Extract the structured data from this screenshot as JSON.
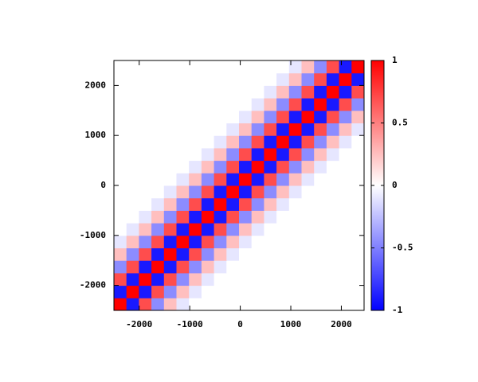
{
  "chart_data": {
    "type": "heatmap",
    "xlim": [
      -2500,
      2450
    ],
    "ylim": [
      -2500,
      2500
    ],
    "xticks": [
      -2000,
      -1000,
      0,
      1000,
      2000
    ],
    "yticks": [
      -2000,
      -1000,
      0,
      1000,
      2000
    ],
    "cblim": [
      -1,
      1
    ],
    "cbticks": [
      -1,
      -0.5,
      0,
      0.5,
      1
    ],
    "colormap": [
      "#0000ff",
      "#ffffff",
      "#ff0000"
    ],
    "z": [
      [
        1,
        -0.9,
        0.7,
        -0.45,
        0.25,
        -0.1,
        0,
        0,
        0,
        0,
        0,
        0,
        0,
        0,
        0,
        0,
        0,
        0,
        0,
        0
      ],
      [
        -0.9,
        1,
        -0.9,
        0.7,
        -0.45,
        0.25,
        -0.1,
        0,
        0,
        0,
        0,
        0,
        0,
        0,
        0,
        0,
        0,
        0,
        0,
        0
      ],
      [
        0.7,
        -0.9,
        1,
        -0.9,
        0.7,
        -0.45,
        0.25,
        -0.1,
        0,
        0,
        0,
        0,
        0,
        0,
        0,
        0,
        0,
        0,
        0,
        0
      ],
      [
        -0.45,
        0.7,
        -0.9,
        1,
        -0.9,
        0.7,
        -0.45,
        0.25,
        -0.1,
        0,
        0,
        0,
        0,
        0,
        0,
        0,
        0,
        0,
        0,
        0
      ],
      [
        0.25,
        -0.45,
        0.7,
        -0.9,
        1,
        -0.9,
        0.7,
        -0.45,
        0.25,
        -0.1,
        0,
        0,
        0,
        0,
        0,
        0,
        0,
        0,
        0,
        0
      ],
      [
        -0.1,
        0.25,
        -0.45,
        0.7,
        -0.9,
        1,
        -0.9,
        0.7,
        -0.45,
        0.25,
        -0.1,
        0,
        0,
        0,
        0,
        0,
        0,
        0,
        0,
        0
      ],
      [
        0,
        -0.1,
        0.25,
        -0.45,
        0.7,
        -0.9,
        1,
        -0.9,
        0.7,
        -0.45,
        0.25,
        -0.1,
        0,
        0,
        0,
        0,
        0,
        0,
        0,
        0
      ],
      [
        0,
        0,
        -0.1,
        0.25,
        -0.45,
        0.7,
        -0.9,
        1,
        -0.9,
        0.7,
        -0.45,
        0.25,
        -0.1,
        0,
        0,
        0,
        0,
        0,
        0,
        0
      ],
      [
        0,
        0,
        0,
        -0.1,
        0.25,
        -0.45,
        0.7,
        -0.9,
        1,
        -0.9,
        0.7,
        -0.45,
        0.25,
        -0.1,
        0,
        0,
        0,
        0,
        0,
        0
      ],
      [
        0,
        0,
        0,
        0,
        -0.1,
        0.25,
        -0.45,
        0.7,
        -0.9,
        1,
        -0.9,
        0.7,
        -0.45,
        0.25,
        -0.1,
        0,
        0,
        0,
        0,
        0
      ],
      [
        0,
        0,
        0,
        0,
        0,
        -0.1,
        0.25,
        -0.45,
        0.7,
        -0.9,
        1,
        -0.9,
        0.7,
        -0.45,
        0.25,
        -0.1,
        0,
        0,
        0,
        0
      ],
      [
        0,
        0,
        0,
        0,
        0,
        0,
        -0.1,
        0.25,
        -0.45,
        0.7,
        -0.9,
        1,
        -0.9,
        0.7,
        -0.45,
        0.25,
        -0.1,
        0,
        0,
        0
      ],
      [
        0,
        0,
        0,
        0,
        0,
        0,
        0,
        -0.1,
        0.25,
        -0.45,
        0.7,
        -0.9,
        1,
        -0.9,
        0.7,
        -0.45,
        0.25,
        -0.1,
        0,
        0
      ],
      [
        0,
        0,
        0,
        0,
        0,
        0,
        0,
        0,
        -0.1,
        0.25,
        -0.45,
        0.7,
        -0.9,
        1,
        -0.9,
        0.7,
        -0.45,
        0.25,
        -0.1,
        0
      ],
      [
        0,
        0,
        0,
        0,
        0,
        0,
        0,
        0,
        0,
        -0.1,
        0.25,
        -0.45,
        0.7,
        -0.9,
        1,
        -0.9,
        0.7,
        -0.45,
        0.25,
        -0.1
      ],
      [
        0,
        0,
        0,
        0,
        0,
        0,
        0,
        0,
        0,
        0,
        -0.1,
        0.25,
        -0.45,
        0.7,
        -0.9,
        1,
        -0.9,
        0.7,
        -0.45,
        0.25
      ],
      [
        0,
        0,
        0,
        0,
        0,
        0,
        0,
        0,
        0,
        0,
        0,
        -0.1,
        0.25,
        -0.45,
        0.7,
        -0.9,
        1,
        -0.9,
        0.7,
        -0.45
      ],
      [
        0,
        0,
        0,
        0,
        0,
        0,
        0,
        0,
        0,
        0,
        0,
        0,
        -0.1,
        0.25,
        -0.45,
        0.7,
        -0.9,
        1,
        -0.9,
        0.7
      ],
      [
        0,
        0,
        0,
        0,
        0,
        0,
        0,
        0,
        0,
        0,
        0,
        0,
        0,
        -0.1,
        0.25,
        -0.45,
        0.7,
        -0.9,
        1,
        -0.9
      ],
      [
        0,
        0,
        0,
        0,
        0,
        0,
        0,
        0,
        0,
        0,
        0,
        0,
        0,
        0,
        -0.1,
        0.25,
        -0.45,
        0.7,
        -0.9,
        1
      ]
    ]
  }
}
